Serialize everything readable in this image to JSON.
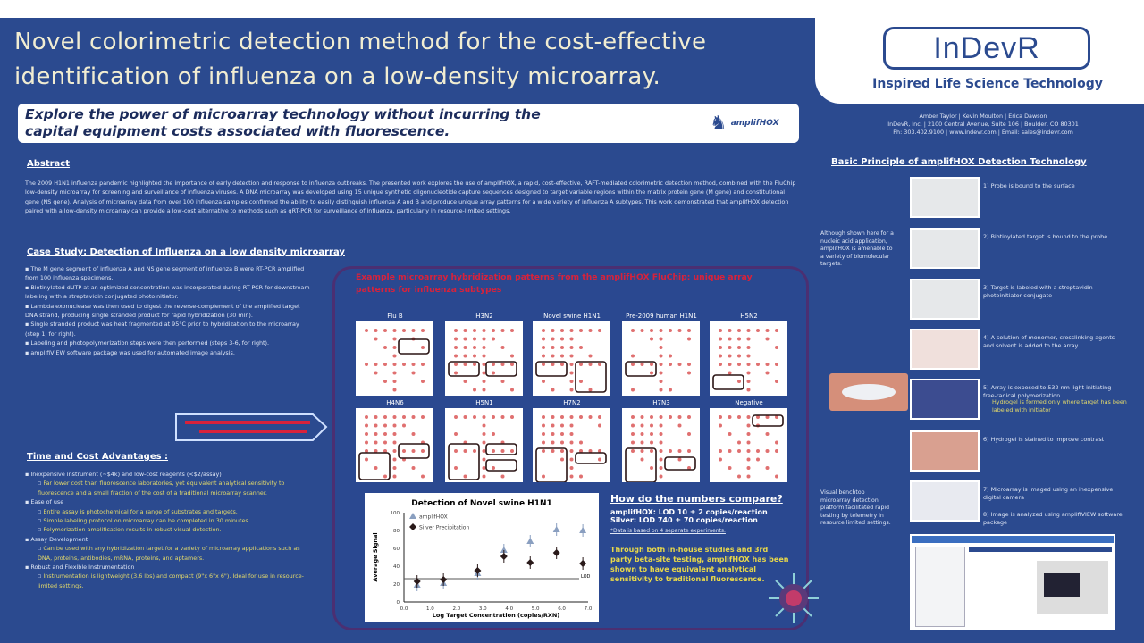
{
  "header": {
    "title_line1": "Novel colorimetric detection method for the cost-effective",
    "title_line2": "identification of influenza on a low-density microarray.",
    "logo_text": "InDevR",
    "tagline": "Inspired Life Science Technology",
    "subtitle_line1": "Explore the power of microarray technology without incurring the",
    "subtitle_line2": "capital equipment costs associated with fluorescence.",
    "product_logo": "amplifHOX"
  },
  "contact": {
    "line1": "Amber Taylor | Kevin Moulton | Erica Dawson",
    "line2": "InDevR, Inc. | 2100 Central Avenue, Suite 106 | Boulder, CO 80301",
    "line3": "Ph: 303.402.9100 | www.indevr.com | Email: sales@indevr.com"
  },
  "abstract": {
    "heading": "Abstract",
    "text": "The 2009 H1N1 influenza pandemic highlighted the importance of early detection and response to influenza outbreaks. The presented work explores the use of amplifHOX, a rapid, cost-effective, RAFT-mediated colorimetric detection method, combined with the FluChip low-density microarray for screening and surveillance of influenza viruses. A DNA microarray was developed using 15 unique synthetic oligonucleotide capture sequences designed to target variable regions within the matrix protein gene (M gene) and constitutional gene (NS gene). Analysis of microarray data from over 100 influenza samples confirmed the ability to easily distinguish influenza A and B and produce unique array patterns for a wide variety of influenza A subtypes. This work demonstrated that amplifHOX detection paired with a low-density microarray can provide a low-cost alternative to methods such as qRT-PCR for surveillance of influenza, particularly in resource-limited settings."
  },
  "case_study": {
    "heading": "Case Study: Detection of Influenza on a low density microarray",
    "bullets": [
      "The M gene segment of influenza A and NS gene segment of influenza B were RT-PCR amplified from 100 influenza specimens.",
      "Biotinylated dUTP at an optimized concentration was incorporated during RT-PCR for downstream labeling with a streptavidin conjugated photoinitiator.",
      "Lambda exonuclease was then used to digest the reverse-complement of the amplified target DNA strand, producing single stranded product for rapid hybridization (30 min).",
      "Single stranded product was heat fragmented at 95°C prior to hybridization to the microarray (step 1, for right).",
      "Labeling and photopolymerization steps were then performed (steps 3-6, for right).",
      "amplifiVIEW software package was used for automated image analysis."
    ]
  },
  "time_cost": {
    "heading": "Time and Cost Advantages :",
    "items": [
      {
        "text": "Inexpensive instrument (~$4k) and low-cost reagents (<$2/assay)",
        "sub": [
          "Far lower cost than fluorescence laboratories, yet equivalent analytical sensitivity to fluorescence and a small fraction of the cost of a traditional microarray scanner."
        ]
      },
      {
        "text": "Ease of use",
        "sub": [
          "Entire assay is photochemical for a range of substrates and targets.",
          "Simple labeling protocol on microarray can be completed in 30 minutes.",
          "Polymerization amplification results in robust visual detection."
        ]
      },
      {
        "text": "Assay Development",
        "sub": [
          "Can be used with any hybridization target for a variety of microarray applications such as DNA, proteins, antibodies, mRNA, proteins, and aptamers."
        ]
      },
      {
        "text": "Robust and Flexible Instrumentation",
        "sub": [
          "Instrumentation is lightweight (3.6 lbs) and compact (9\"x 6\"x 6\"). Ideal for use in resource-limited settings."
        ]
      }
    ]
  },
  "center": {
    "panel_title": "Example microarray hybridization patterns from the amplifHOX FluChip: unique array patterns for influenza subtypes",
    "arrays": [
      "Flu B",
      "H3N2",
      "Novel swine H1N1",
      "Pre-2009 human H1N1",
      "H5N2",
      "H4N6",
      "H5N1",
      "H7N2",
      "H7N3",
      "Negative"
    ]
  },
  "chart_data": {
    "type": "scatter",
    "title": "Detection of Novel swine H1N1",
    "xlabel": "Log Target Concentration (copies/RXN)",
    "ylabel": "Average Signal",
    "xlim": [
      0,
      7
    ],
    "ylim": [
      0,
      100
    ],
    "xticks": [
      "0.0",
      "1.0",
      "2.0",
      "3.0",
      "4.0",
      "5.0",
      "6.0",
      "7.0"
    ],
    "yticks": [
      "0",
      "20",
      "40",
      "60",
      "80",
      "100"
    ],
    "series": [
      {
        "name": "amplifHOX",
        "marker": "triangle",
        "color": "#8a9fc0",
        "x": [
          0.5,
          1.5,
          2.8,
          3.8,
          4.8,
          5.8,
          6.8
        ],
        "y": [
          19,
          21,
          32,
          58,
          68,
          81,
          80
        ]
      },
      {
        "name": "Silver Precipitation",
        "marker": "diamond",
        "color": "#2a1a1a",
        "x": [
          0.5,
          1.5,
          2.8,
          3.8,
          4.8,
          5.8,
          6.8
        ],
        "y": [
          23,
          25,
          35,
          51,
          44,
          55,
          43
        ]
      }
    ],
    "lod": {
      "label": "LOD",
      "y": 26
    },
    "legend": "top-left",
    "grid": false
  },
  "compare": {
    "heading": "How do the numbers compare?",
    "line1": "amplifHOX: LOD 10 ± 2 copies/reaction",
    "line2": "Silver: LOD 740 ± 70 copies/reaction",
    "footnote": "*Data is based on 4 separate experiments.",
    "highlight": "Through both in-house studies and 3rd party beta-site testing, amplifHOX has been shown to have equivalent analytical sensitivity to traditional fluorescence."
  },
  "principle": {
    "heading": "Basic Principle of amplifHOX Detection Technology",
    "steps": [
      "1)  Probe is bound to the surface",
      "2)  Biotinylated target is bound to the probe",
      "3)  Target is labeled with a streptavidin-photoinitiator conjugate",
      "4)  A solution of monomer, crosslinking agents and solvent is added to the array",
      "5)  Array is exposed to 532 nm light initiating free-radical polymerization",
      "6)  Hydrogel is stained to improve contrast",
      "7)  Microarray is imaged using an inexpensive digital camera",
      "8)  Image is analyzed using amplifiVIEW software package"
    ],
    "step5_sub": "Hydrogel is formed only where target has been labeled with initiator",
    "note1": "Although shown here for a nucleic acid application, amplifHOX is amenable to a variety of biomolecular targets.",
    "note2": "Visual benchtop microarray detection platform facilitated rapid testing by telemetry in resource limited settings."
  }
}
